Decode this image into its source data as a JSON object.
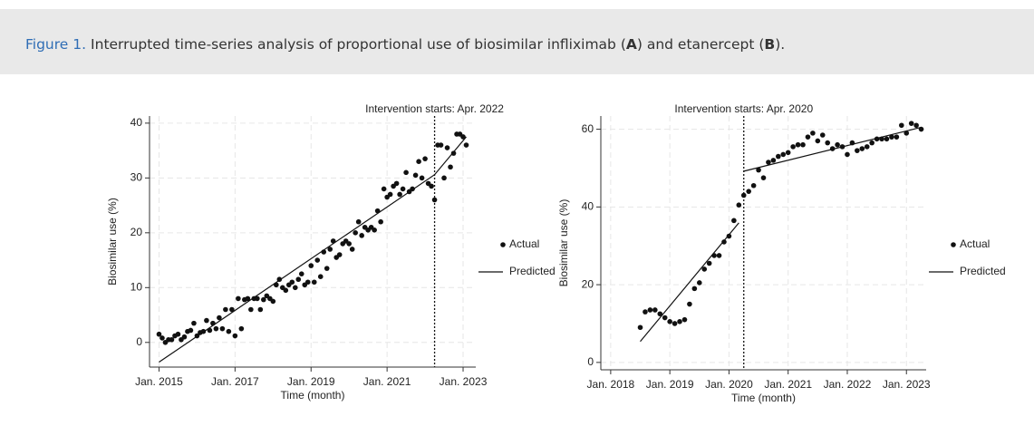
{
  "caption": {
    "label": "Figure 1.",
    "parts": [
      "Interrupted time-series analysis of proportional use of biosimilar infliximab (",
      "A",
      ") and etanercept (",
      "B",
      ")."
    ]
  },
  "chart_data": [
    {
      "type": "scatter",
      "annotation": "Intervention starts: Apr. 2022",
      "vline": "2022-04",
      "x_label": "Time (month)",
      "y_label": "Biosimilar use (%)",
      "xlim": [
        "2014-10",
        "2023-05"
      ],
      "ylim": [
        -4.5,
        41.3
      ],
      "xticks": [
        {
          "value": "2015-01",
          "label": "Jan. 2015"
        },
        {
          "value": "2017-01",
          "label": "Jan. 2017"
        },
        {
          "value": "2019-01",
          "label": "Jan. 2019"
        },
        {
          "value": "2021-01",
          "label": "Jan. 2021"
        },
        {
          "value": "2023-01",
          "label": "Jan. 2023"
        }
      ],
      "yticks": [
        0,
        10,
        20,
        30,
        40
      ],
      "grid": true,
      "legend": "right",
      "series": [
        {
          "name": "Actual",
          "mode": "points",
          "color": "#111111",
          "x": [
            "2015-01",
            "2015-02",
            "2015-03",
            "2015-04",
            "2015-05",
            "2015-06",
            "2015-07",
            "2015-08",
            "2015-09",
            "2015-10",
            "2015-11",
            "2015-12",
            "2016-01",
            "2016-02",
            "2016-03",
            "2016-04",
            "2016-05",
            "2016-06",
            "2016-07",
            "2016-08",
            "2016-09",
            "2016-10",
            "2016-11",
            "2016-12",
            "2017-01",
            "2017-02",
            "2017-03",
            "2017-04",
            "2017-05",
            "2017-06",
            "2017-07",
            "2017-08",
            "2017-09",
            "2017-10",
            "2017-11",
            "2017-12",
            "2018-01",
            "2018-02",
            "2018-03",
            "2018-04",
            "2018-05",
            "2018-06",
            "2018-07",
            "2018-08",
            "2018-09",
            "2018-10",
            "2018-11",
            "2018-12",
            "2019-01",
            "2019-02",
            "2019-03",
            "2019-04",
            "2019-05",
            "2019-06",
            "2019-07",
            "2019-08",
            "2019-09",
            "2019-10",
            "2019-11",
            "2019-12",
            "2020-01",
            "2020-02",
            "2020-03",
            "2020-04",
            "2020-05",
            "2020-06",
            "2020-07",
            "2020-08",
            "2020-09",
            "2020-10",
            "2020-11",
            "2020-12",
            "2021-01",
            "2021-02",
            "2021-03",
            "2021-04",
            "2021-05",
            "2021-06",
            "2021-07",
            "2021-08",
            "2021-09",
            "2021-10",
            "2021-11",
            "2021-12",
            "2022-01",
            "2022-02",
            "2022-03",
            "2022-04",
            "2022-05",
            "2022-06",
            "2022-07",
            "2022-08",
            "2022-09",
            "2022-10",
            "2022-11",
            "2022-12",
            "2023-01",
            "2023-02"
          ],
          "values": [
            1.5,
            0.8,
            0,
            0.5,
            0.5,
            1.2,
            1.5,
            0.5,
            1,
            2,
            2.2,
            3.5,
            1.2,
            1.8,
            2,
            4,
            2.2,
            3.5,
            2.5,
            4.5,
            2.5,
            6,
            2,
            6,
            1.2,
            8,
            2.5,
            7.8,
            8,
            6,
            8,
            8,
            6,
            7.8,
            8.5,
            8,
            7.5,
            10.5,
            11.5,
            10,
            9.5,
            10.5,
            11,
            10,
            11.5,
            12.5,
            10.5,
            11,
            14,
            11,
            15,
            12,
            16.5,
            13.5,
            17,
            18.5,
            15.5,
            16,
            18,
            18.5,
            18,
            17,
            20,
            22,
            19.5,
            21,
            20.5,
            21,
            20.5,
            24,
            22,
            28,
            26.5,
            27,
            28.5,
            29,
            27,
            28,
            31,
            27.5,
            28,
            30.5,
            33,
            30,
            33.5,
            29,
            28.5,
            26,
            36,
            36,
            30,
            35.5,
            32,
            34.5,
            38,
            38,
            37.5,
            36
          ]
        },
        {
          "name": "Predicted",
          "mode": "line",
          "color": "#111111",
          "x": [
            "2015-01",
            "2022-04",
            "2023-02"
          ],
          "values": [
            -3.6,
            30.6,
            37.5
          ]
        }
      ]
    },
    {
      "type": "scatter",
      "annotation": "Intervention starts: Apr. 2020",
      "vline": "2020-04",
      "x_label": "Time (month)",
      "y_label": "Biosimilar use (%)",
      "xlim": [
        "2017-11",
        "2023-05"
      ],
      "ylim": [
        -1.9,
        63.4
      ],
      "xticks": [
        {
          "value": "2018-01",
          "label": "Jan. 2018"
        },
        {
          "value": "2019-01",
          "label": "Jan. 2019"
        },
        {
          "value": "2020-01",
          "label": "Jan. 2020"
        },
        {
          "value": "2021-01",
          "label": "Jan. 2021"
        },
        {
          "value": "2022-01",
          "label": "Jan. 2022"
        },
        {
          "value": "2023-01",
          "label": "Jan. 2023"
        }
      ],
      "yticks": [
        0,
        20,
        40,
        60
      ],
      "grid": true,
      "legend": "right",
      "series": [
        {
          "name": "Actual",
          "mode": "points",
          "color": "#111111",
          "x": [
            "2018-07",
            "2018-08",
            "2018-09",
            "2018-10",
            "2018-11",
            "2018-12",
            "2019-01",
            "2019-02",
            "2019-03",
            "2019-04",
            "2019-05",
            "2019-06",
            "2019-07",
            "2019-08",
            "2019-09",
            "2019-10",
            "2019-11",
            "2019-12",
            "2020-01",
            "2020-02",
            "2020-03",
            "2020-04",
            "2020-05",
            "2020-06",
            "2020-07",
            "2020-08",
            "2020-09",
            "2020-10",
            "2020-11",
            "2020-12",
            "2021-01",
            "2021-02",
            "2021-03",
            "2021-04",
            "2021-05",
            "2021-06",
            "2021-07",
            "2021-08",
            "2021-09",
            "2021-10",
            "2021-11",
            "2021-12",
            "2022-01",
            "2022-02",
            "2022-03",
            "2022-04",
            "2022-05",
            "2022-06",
            "2022-07",
            "2022-08",
            "2022-09",
            "2022-10",
            "2022-11",
            "2022-12",
            "2023-01",
            "2023-02",
            "2023-03",
            "2023-04"
          ],
          "values": [
            9,
            13,
            13.5,
            13.5,
            12.5,
            11.5,
            10.5,
            10,
            10.5,
            11,
            15,
            19,
            20.5,
            24,
            25.5,
            27.5,
            27.5,
            31,
            32.5,
            36.5,
            40.5,
            43,
            44,
            45.5,
            49.5,
            47.5,
            51.5,
            52,
            53,
            53.5,
            54,
            55.5,
            56,
            56,
            58,
            59,
            57,
            58.5,
            56.5,
            55,
            56,
            55.5,
            53.5,
            56.5,
            54.5,
            55,
            55.5,
            56.5,
            57.5,
            57.5,
            57.5,
            58,
            58,
            61,
            59,
            61.5,
            61,
            60
          ]
        },
        {
          "name": "Predicted",
          "mode": "line",
          "color": "#111111",
          "x": [
            "2018-07",
            "2020-03",
            "2020-04",
            "2020-04",
            "2023-04"
          ],
          "values": [
            5.4,
            35.9,
            null,
            49.2,
            60.5
          ]
        }
      ]
    }
  ]
}
